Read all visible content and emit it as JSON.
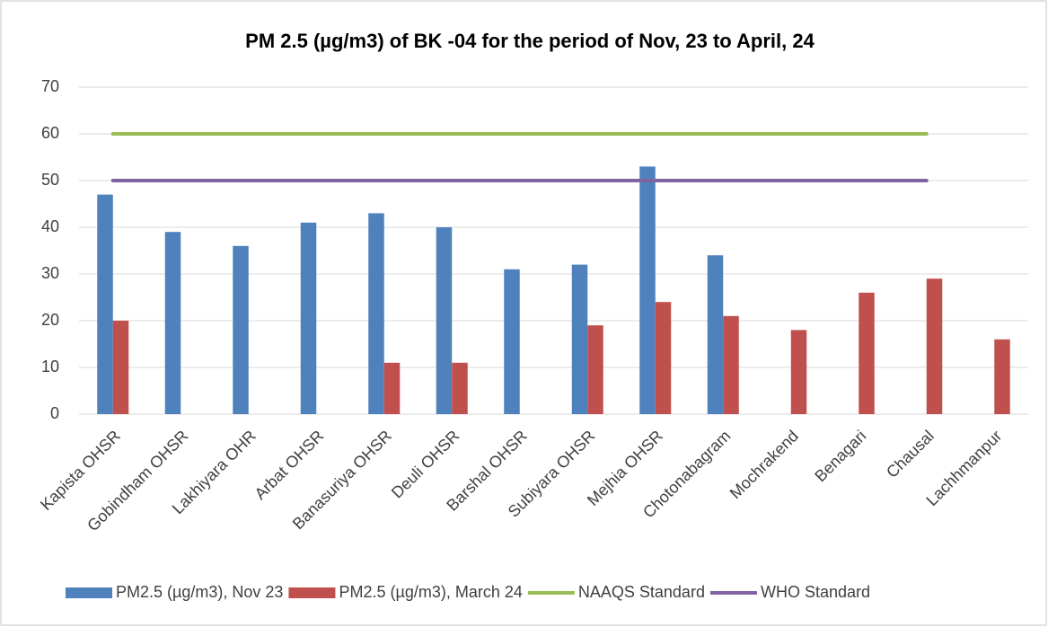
{
  "chart_data": {
    "type": "bar",
    "title": "PM 2.5 (µg/m3) of BK -04 for the period of Nov, 23 to April, 24",
    "categories": [
      "Kapista OHSR",
      "Gobindham OHSR",
      "Lakhiyara OHR",
      "Arbat OHSR",
      "Banasuriya OHSR",
      "Deuli OHSR",
      "Barshal OHSR",
      "Subiyara OHSR",
      "Mejhia OHSR",
      "Chotonabagram",
      "Mochrakend",
      "Benagari",
      "Chausal",
      "Lachhmanpur"
    ],
    "series": [
      {
        "name": "PM2.5 (µg/m3), Nov 23",
        "color": "#4f81bd",
        "type": "bar",
        "values": [
          47,
          39,
          36,
          41,
          43,
          40,
          31,
          32,
          53,
          34,
          null,
          null,
          null,
          null
        ]
      },
      {
        "name": "PM2.5 (µg/m3), March 24",
        "color": "#c0504d",
        "type": "bar",
        "values": [
          20,
          null,
          null,
          null,
          11,
          11,
          null,
          19,
          24,
          21,
          18,
          26,
          29,
          16
        ]
      },
      {
        "name": "NAAQS Standard",
        "color": "#9bbb59",
        "type": "line",
        "values": [
          60,
          60,
          60,
          60,
          60,
          60,
          60,
          60,
          60,
          60,
          60,
          60,
          60,
          null
        ]
      },
      {
        "name": "WHO Standard",
        "color": "#8064a2",
        "type": "line",
        "values": [
          50,
          50,
          50,
          50,
          50,
          50,
          50,
          50,
          50,
          50,
          50,
          50,
          50,
          null
        ]
      }
    ],
    "ylim": [
      0,
      70
    ],
    "yticks": [
      0,
      10,
      20,
      30,
      40,
      50,
      60,
      70
    ],
    "grid": true,
    "legend": "bottom"
  }
}
